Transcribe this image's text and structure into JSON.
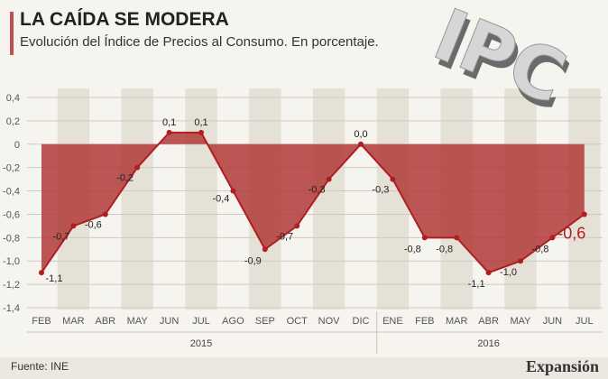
{
  "header": {
    "title": "LA CAÍDA SE MODERA",
    "subtitle": "Evolución del Índice de Precios al Consumo. En porcentaje."
  },
  "logo": {
    "text": "IPC"
  },
  "footer": {
    "source": "Fuente: INE",
    "brand": "Expansión"
  },
  "colors": {
    "accent": "#c0504d",
    "line": "#b01e22",
    "area": "#b03a38"
  },
  "chart_data": {
    "type": "area",
    "title": "LA CAÍDA SE MODERA",
    "xlabel": "",
    "ylabel": "",
    "ylim": [
      -1.4,
      0.4
    ],
    "yticks": [
      "0,4",
      "0,2",
      "0",
      "-0,2",
      "-0,4",
      "-0,6",
      "-0,8",
      "-1,0",
      "-1,2",
      "-1,4"
    ],
    "ytick_values": [
      0.4,
      0.2,
      0,
      -0.2,
      -0.4,
      -0.6,
      -0.8,
      -1.0,
      -1.2,
      -1.4
    ],
    "categories": [
      "FEB",
      "MAR",
      "ABR",
      "MAY",
      "JUN",
      "JUL",
      "AGO",
      "SEP",
      "OCT",
      "NOV",
      "DIC",
      "ENE",
      "FEB",
      "MAR",
      "ABR",
      "MAY",
      "JUN",
      "JUL"
    ],
    "values": [
      -1.1,
      -0.7,
      -0.6,
      -0.2,
      0.1,
      0.1,
      -0.4,
      -0.9,
      -0.7,
      -0.3,
      0.0,
      -0.3,
      -0.8,
      -0.8,
      -1.1,
      -1.0,
      -0.8,
      -0.6
    ],
    "labels": [
      "-1,1",
      "-0,7",
      "-0,6",
      "-0,2",
      "0,1",
      "0,1",
      "-0,4",
      "-0,9",
      "-0,7",
      "-0,3",
      "0,0",
      "-0,3",
      "-0,8",
      "-0,8",
      "-1,1",
      "-1,0",
      "-0,8",
      "-0,6"
    ],
    "years": [
      {
        "label": "2015",
        "start": 0,
        "end": 10
      },
      {
        "label": "2016",
        "start": 11,
        "end": 17
      }
    ],
    "grid": true
  }
}
